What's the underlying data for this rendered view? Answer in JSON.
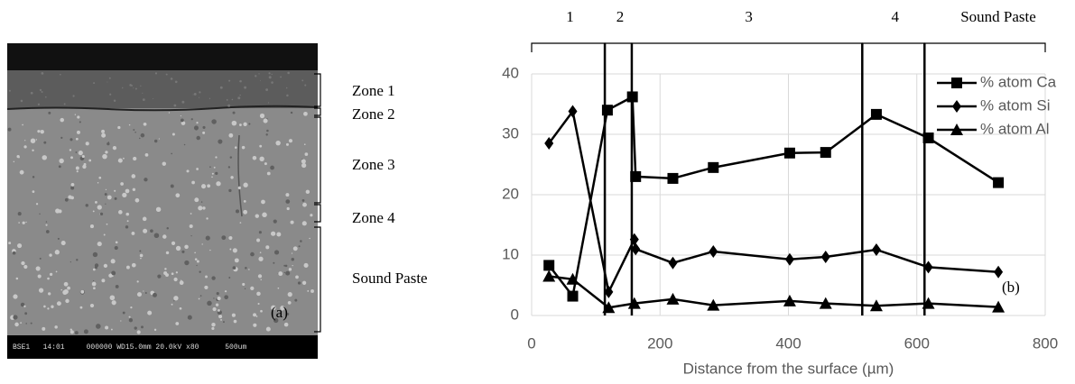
{
  "image_panel": {
    "label": "(a)",
    "info_bar": "BSE1   14:01     000000 WD15.0mm 20.0kV x80      500um",
    "zones": [
      "Zone 1",
      "Zone 2",
      "Zone 3",
      "Zone 4",
      "Sound Paste"
    ]
  },
  "chart_data": {
    "type": "line",
    "panel_label": "(b)",
    "xlabel": "Distance from the surface (µm)",
    "xlim": [
      0,
      800
    ],
    "xticks": [
      0,
      200,
      400,
      600,
      800
    ],
    "ylim": [
      0,
      40
    ],
    "yticks": [
      0,
      10,
      20,
      30,
      40
    ],
    "grid": true,
    "legend": "upper right",
    "zones": [
      {
        "label": "1",
        "from": 0,
        "to": 114
      },
      {
        "label": "2",
        "from": 114,
        "to": 156
      },
      {
        "label": "3",
        "from": 156,
        "to": 515
      },
      {
        "label": "4",
        "from": 515,
        "to": 612
      },
      {
        "label": "Sound Paste",
        "from": 612,
        "to": 800
      }
    ],
    "series": [
      {
        "name": "% atom Ca",
        "color": "#000000",
        "marker": "square",
        "x": [
          27,
          64,
          118,
          157,
          162,
          220,
          283,
          402,
          458,
          537,
          618,
          727
        ],
        "values": [
          8.3,
          3.2,
          34,
          36.2,
          23,
          22.7,
          24.5,
          26.9,
          27,
          33.3,
          29.4,
          22
        ]
      },
      {
        "name": "% atom Si",
        "color": "#000000",
        "marker": "diamond",
        "x": [
          27,
          64,
          120,
          160,
          162,
          220,
          283,
          402,
          458,
          537,
          618,
          727
        ],
        "values": [
          28.5,
          33.8,
          3.9,
          12.6,
          11,
          8.7,
          10.6,
          9.3,
          9.7,
          10.9,
          8,
          7.2
        ]
      },
      {
        "name": "% atom Al",
        "color": "#000000",
        "marker": "triangle",
        "x": [
          27,
          64,
          120,
          160,
          220,
          283,
          402,
          458,
          537,
          618,
          727
        ],
        "values": [
          6.5,
          6,
          1.3,
          2,
          2.7,
          1.7,
          2.4,
          2,
          1.6,
          2,
          1.4
        ]
      }
    ]
  }
}
